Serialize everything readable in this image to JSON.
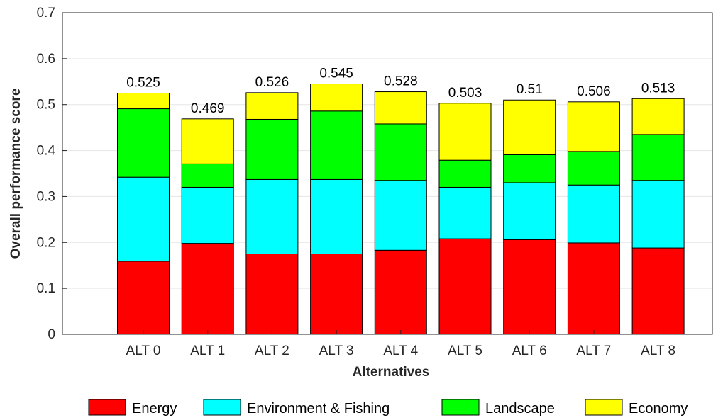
{
  "chart_data": {
    "type": "bar",
    "stacked": true,
    "xlabel": "Alternatives",
    "ylabel": "Overall performance score",
    "ylim": [
      0,
      0.7
    ],
    "yticks": [
      "0",
      "0.1",
      "0.2",
      "0.3",
      "0.4",
      "0.5",
      "0.6",
      "0.7"
    ],
    "grid": "horizontal",
    "legend_position": "bottom",
    "categories": [
      "ALT 0",
      "ALT 1",
      "ALT 2",
      "ALT 3",
      "ALT 4",
      "ALT 5",
      "ALT 6",
      "ALT 7",
      "ALT 8"
    ],
    "series": [
      {
        "name": "Energy",
        "color": "#ff0000",
        "values": [
          0.159,
          0.198,
          0.175,
          0.175,
          0.183,
          0.208,
          0.206,
          0.199,
          0.188
        ]
      },
      {
        "name": "Environment & Fishing",
        "color": "#00ffff",
        "values": [
          0.183,
          0.122,
          0.162,
          0.162,
          0.152,
          0.112,
          0.124,
          0.126,
          0.147
        ]
      },
      {
        "name": "Landscape",
        "color": "#00ff00",
        "values": [
          0.149,
          0.051,
          0.131,
          0.149,
          0.123,
          0.059,
          0.061,
          0.073,
          0.1
        ]
      },
      {
        "name": "Economy",
        "color": "#ffff00",
        "values": [
          0.034,
          0.098,
          0.058,
          0.059,
          0.07,
          0.124,
          0.119,
          0.108,
          0.078
        ]
      }
    ],
    "totals": [
      "0.525",
      "0.469",
      "0.526",
      "0.545",
      "0.528",
      "0.503",
      "0.51",
      "0.506",
      "0.513"
    ]
  }
}
